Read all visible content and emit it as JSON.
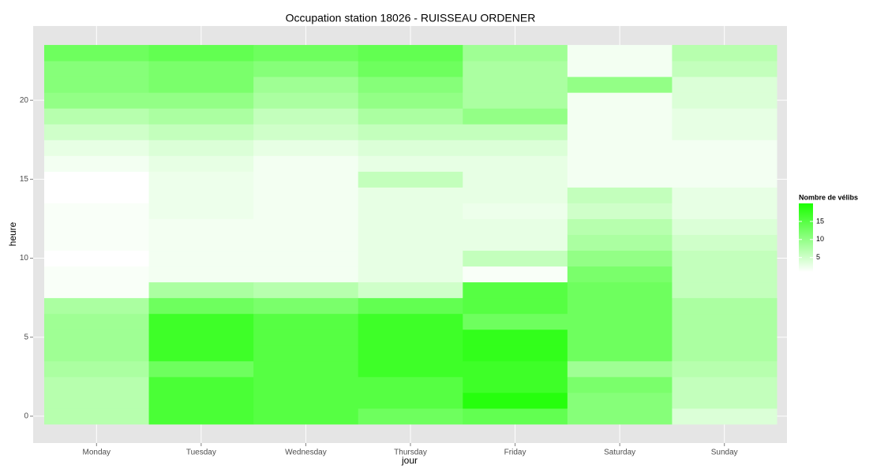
{
  "chart_data": {
    "type": "heatmap",
    "title": "Occupation station 18026 - RUISSEAU ORDENER",
    "xlabel": "jour",
    "ylabel": "heure",
    "categories": [
      "Monday",
      "Tuesday",
      "Wednesday",
      "Thursday",
      "Friday",
      "Saturday",
      "Sunday"
    ],
    "y": [
      0,
      1,
      2,
      3,
      4,
      5,
      6,
      7,
      8,
      9,
      10,
      11,
      12,
      13,
      14,
      15,
      16,
      17,
      18,
      19,
      20,
      21,
      22,
      23
    ],
    "values": [
      [
        7,
        7,
        7,
        8,
        9,
        9,
        9,
        8,
        1.5,
        1.5,
        1,
        1.5,
        1.5,
        1.5,
        1,
        1,
        2,
        3,
        5,
        7,
        10,
        11,
        11,
        13
      ],
      [
        16,
        16,
        16,
        13,
        17,
        17,
        17,
        13,
        8,
        2,
        2,
        2,
        2,
        2.5,
        2.5,
        2.5,
        3,
        4,
        6,
        8,
        10,
        12,
        12,
        14
      ],
      [
        15,
        15,
        15,
        15,
        15,
        15,
        15,
        12,
        7,
        2,
        2,
        2,
        2,
        2,
        2,
        2,
        2,
        3,
        5,
        6,
        8,
        9,
        11,
        13
      ],
      [
        13,
        15,
        15,
        17,
        17,
        17,
        17,
        14,
        5,
        3,
        3,
        3,
        3,
        3,
        3,
        6,
        3,
        4,
        6,
        8,
        10,
        11,
        13,
        14
      ],
      [
        14,
        19,
        17,
        17,
        18,
        18,
        13,
        15,
        15,
        1.5,
        6,
        3,
        3,
        2.5,
        3,
        3,
        3,
        4,
        6,
        10,
        8,
        8,
        8,
        9
      ],
      [
        11,
        11,
        12,
        9,
        13,
        13,
        13,
        13,
        13,
        12,
        10,
        8,
        7,
        5,
        6,
        2,
        2,
        2,
        2,
        2,
        2,
        10,
        2,
        2
      ],
      [
        4,
        6,
        6,
        7,
        8,
        8,
        8,
        8,
        6,
        6,
        6,
        5,
        4,
        3,
        3,
        2,
        2,
        2,
        3,
        3,
        4,
        4,
        6,
        7
      ]
    ],
    "ylim": [
      -1.7,
      24.7
    ],
    "yticks": [
      0,
      5,
      10,
      15,
      20
    ],
    "legend_title": "Nombre de vélibs",
    "legend_ticks": [
      5,
      10,
      15
    ],
    "color_low": "#ffffff",
    "color_high": "#1aff00",
    "color_limits": [
      1,
      20
    ],
    "grid": true
  }
}
